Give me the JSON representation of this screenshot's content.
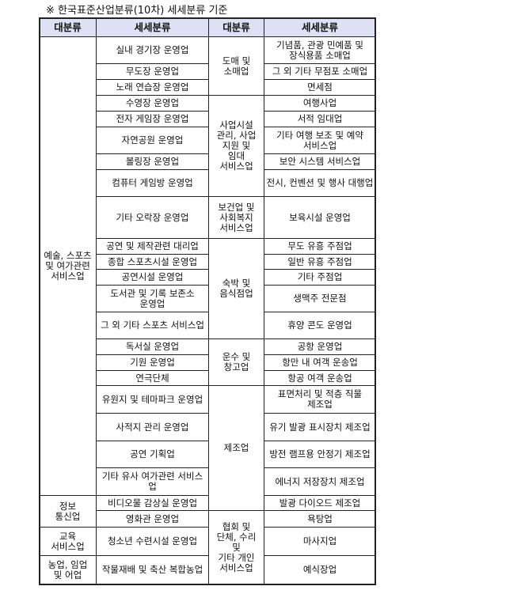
{
  "note": "※ 한국표준산업분류(10차) 세세분류 기준",
  "headers": [
    "대분류",
    "세세분류",
    "대분류",
    "세세분류"
  ],
  "col1": [
    "예술, 스포츠\n및 여가관련\n서비스업",
    "정보\n통신업",
    "교육\n서비스업",
    "농업, 임업\n및 어업"
  ],
  "col2": [
    "실내 경기장 운영업",
    "무도장 운영업",
    "노래 연습장 운영업",
    "수영장 운영업",
    "전자 게임장 운영업",
    "자연공원 운영업",
    "볼링장 운영업",
    "컴퓨터 게임방 운영업",
    "기타 오락장 운영업",
    "공연 및 제작관련 대리업",
    "종합 스포츠시설 운영업",
    "공연시설 운영업",
    "도서관 및 기록 보존소\n운영업",
    "그 외 기타 스포츠 서비스업",
    "독서실 운영업",
    "기원 운영업",
    "연극단체",
    "유원지 및 테마파크 운영업",
    "사적지 관리 운영업",
    "공연 기획업",
    "기타 유사 여가관련 서비스업",
    "비디오물 감상실 운영업",
    "영화관 운영업",
    "청소년 수련시설 운영업",
    "작물재배 및 축산 복합농업"
  ],
  "col3": [
    "도매 및\n소매업",
    "사업시설\n관리, 사업\n지원 및\n임대\n서비스업",
    "보건업 및\n사회복지\n서비스업",
    "숙박 및\n음식점업",
    "운수 및\n창고업",
    "제조업",
    "협회 및\n단체, 수리\n및\n기타 개인\n서비스업"
  ],
  "col4": [
    "기념품, 관광 민예품 및\n장식용품 소매업",
    "그 외 기타 무점포 소매업",
    "면세점",
    "여행사업",
    "서적 임대업",
    "기타 여행 보조 및 예약\n서비스업",
    "보안 시스템 서비스업",
    "전시, 컨벤션 및 행사 대행업",
    "보육시설 운영업",
    "무도 유흥 주점업",
    "일반 유흥 주점업",
    "기타 주점업",
    "생맥주 전문점",
    "휴양 콘도 운영업",
    "공항 운영업",
    "항만 내 여객 운송업",
    "항공 여객 운송업",
    "표면처리 및 적층 직물\n제조업",
    "유기 발광 표시장치 제조업",
    "방전 램프용 안정기 제조업",
    "에너지 저장장치 제조업",
    "발광 다이오드 제조업",
    "욕탕업",
    "마사지업",
    "예식장업"
  ],
  "colors": {
    "header_bg": "#dfe0f3",
    "border": "#222222"
  }
}
